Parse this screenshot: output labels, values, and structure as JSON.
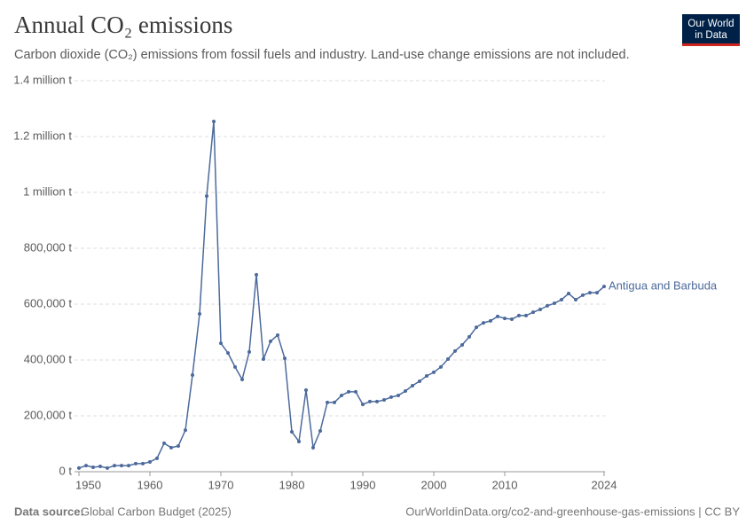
{
  "logo": {
    "line1": "Our World",
    "line2": "in Data"
  },
  "chart_data": {
    "type": "line",
    "title": "Annual CO₂ emissions",
    "subtitle": "Carbon dioxide (CO₂) emissions from fossil fuels and industry. Land-use change emissions are not included.",
    "x": [
      1950,
      1951,
      1952,
      1953,
      1954,
      1955,
      1956,
      1957,
      1958,
      1959,
      1960,
      1961,
      1962,
      1963,
      1964,
      1965,
      1966,
      1967,
      1968,
      1969,
      1970,
      1971,
      1972,
      1973,
      1974,
      1975,
      1976,
      1977,
      1978,
      1979,
      1980,
      1981,
      1982,
      1983,
      1984,
      1985,
      1986,
      1987,
      1988,
      1989,
      1990,
      1991,
      1992,
      1993,
      1994,
      1995,
      1996,
      1997,
      1998,
      1999,
      2000,
      2001,
      2002,
      2003,
      2004,
      2005,
      2006,
      2007,
      2008,
      2009,
      2010,
      2011,
      2012,
      2013,
      2014,
      2015,
      2016,
      2017,
      2018,
      2019,
      2020,
      2021,
      2022,
      2023,
      2024
    ],
    "series": [
      {
        "name": "Antigua and Barbuda",
        "color": "#4c6a9c",
        "values": [
          13000,
          22000,
          16000,
          19000,
          13000,
          22000,
          22000,
          22000,
          29000,
          29000,
          35000,
          48000,
          102000,
          86000,
          92000,
          149000,
          346000,
          565000,
          987000,
          1254000,
          460000,
          425000,
          375000,
          330000,
          429000,
          705000,
          403000,
          467000,
          489000,
          406000,
          143000,
          108000,
          292000,
          86000,
          146000,
          248000,
          248000,
          273000,
          286000,
          286000,
          241000,
          251000,
          251000,
          257000,
          267000,
          273000,
          289000,
          308000,
          324000,
          343000,
          356000,
          375000,
          403000,
          432000,
          454000,
          483000,
          517000,
          533000,
          540000,
          556000,
          549000,
          546000,
          559000,
          559000,
          571000,
          581000,
          594000,
          603000,
          616000,
          638000,
          616000,
          632000,
          641000,
          641000,
          663000
        ]
      }
    ],
    "xlim": [
      1950,
      2024
    ],
    "xticks": [
      1950,
      1960,
      1970,
      1980,
      1990,
      2000,
      2010,
      2024
    ],
    "ylim": [
      0,
      1400000
    ],
    "yticks": [
      {
        "value": 0,
        "label": "0 t"
      },
      {
        "value": 200000,
        "label": "200,000 t"
      },
      {
        "value": 400000,
        "label": "400,000 t"
      },
      {
        "value": 600000,
        "label": "600,000 t"
      },
      {
        "value": 800000,
        "label": "800,000 t"
      },
      {
        "value": 1000000,
        "label": "1 million t"
      },
      {
        "value": 1200000,
        "label": "1.2 million t"
      },
      {
        "value": 1400000,
        "label": "1.4 million t"
      }
    ],
    "grid": true,
    "source_label": "Data source:",
    "source": "Global Carbon Budget (2025)",
    "url": "OurWorldinData.org/co2-and-greenhouse-gas-emissions | CC BY"
  }
}
